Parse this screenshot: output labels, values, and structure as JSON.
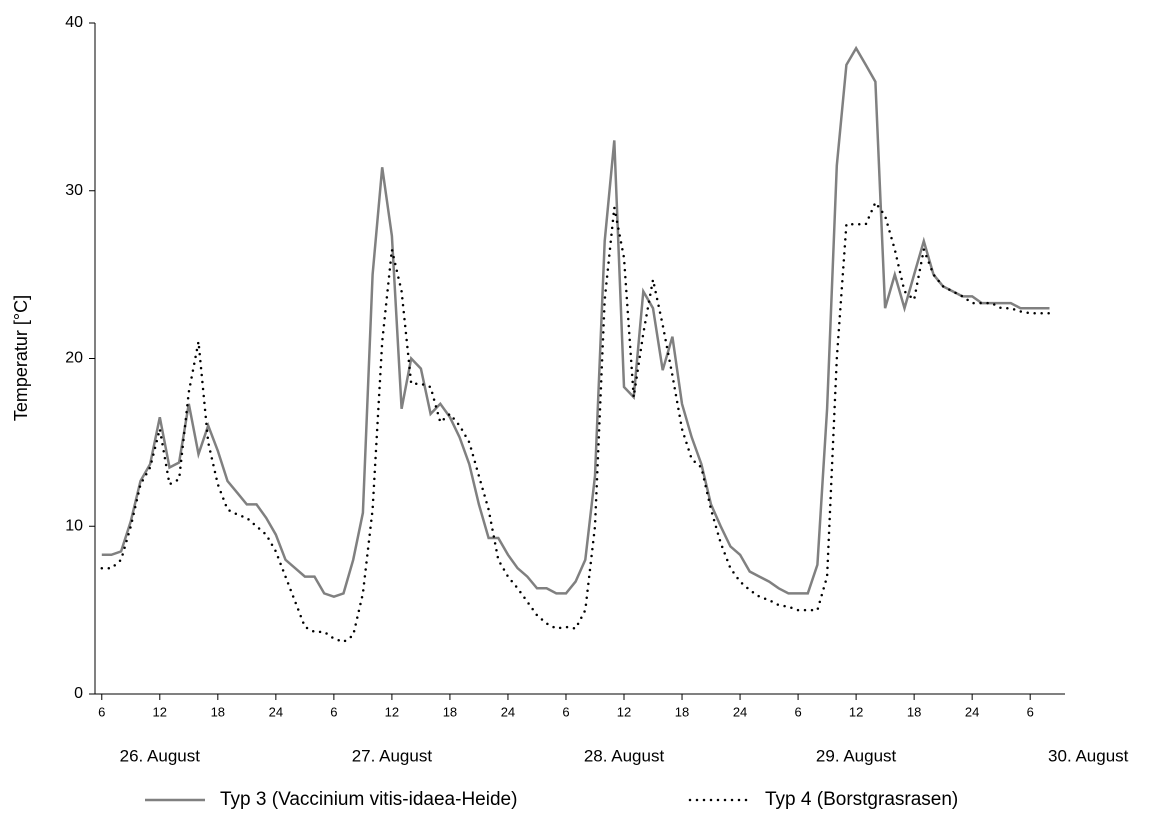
{
  "chart_data": {
    "type": "line",
    "y_label": "Temperatur [°C]",
    "x": [
      6,
      7,
      8,
      9,
      10,
      11,
      12,
      13,
      14,
      15,
      16,
      17,
      18,
      19,
      20,
      21,
      22,
      23,
      24,
      25,
      26,
      27,
      28,
      29,
      30,
      31,
      32,
      33,
      34,
      35,
      36,
      37,
      38,
      39,
      40,
      41,
      42,
      43,
      44,
      45,
      46,
      47,
      48,
      49,
      50,
      51,
      52,
      53,
      54,
      55,
      56,
      57,
      58,
      59,
      60,
      61,
      62,
      63,
      64,
      65,
      66,
      67,
      68,
      69,
      70,
      71,
      72,
      73,
      74,
      75,
      76,
      77,
      78,
      79,
      80,
      81,
      82,
      83,
      84,
      85,
      86,
      87,
      88,
      89,
      90,
      91,
      92,
      93,
      94,
      95,
      96,
      97,
      98,
      99,
      100,
      101,
      102,
      103,
      104
    ],
    "series": [
      {
        "name": "Typ 3 (Vaccinium vitis-idaea-Heide)",
        "color": "#808080",
        "style": "solid",
        "values": [
          8.3,
          8.3,
          8.5,
          10.3,
          12.7,
          13.7,
          16.5,
          13.5,
          13.8,
          17.3,
          14.3,
          16,
          14.5,
          12.7,
          12,
          11.3,
          11.3,
          10.5,
          9.5,
          8,
          7.5,
          7,
          7,
          6,
          5.8,
          6,
          8,
          10.8,
          25,
          31.4,
          27.3,
          17,
          20,
          19.4,
          16.7,
          17.3,
          16.5,
          15.3,
          13.7,
          11.3,
          9.3,
          9.3,
          8.3,
          7.5,
          7,
          6.3,
          6.3,
          6,
          6,
          6.7,
          8,
          13,
          27,
          33,
          18.3,
          17.7,
          24,
          23,
          19.3,
          21.3,
          17.3,
          15.3,
          13.7,
          11.3,
          10,
          8.8,
          8.3,
          7.3,
          7,
          6.7,
          6.3,
          6,
          6,
          6,
          7.7,
          17,
          31.5,
          37.5,
          38.5,
          37.5,
          36.5,
          23,
          25,
          23,
          25,
          27,
          25,
          24.3,
          24,
          23.7,
          23.7,
          23.3,
          23.3,
          23.3,
          23.3,
          23,
          23,
          23,
          23
        ]
      },
      {
        "name": "Typ 4 (Borstgrasrasen)",
        "color": "#000000",
        "style": "dotted",
        "values": [
          7.5,
          7.5,
          8,
          10,
          12.5,
          13.5,
          15.8,
          12.5,
          12.8,
          18,
          21,
          15,
          12.5,
          11,
          10.7,
          10.5,
          10,
          9.5,
          8.5,
          7,
          5.5,
          4,
          3.7,
          3.7,
          3.3,
          3.1,
          3.5,
          6,
          11,
          21,
          26.5,
          24,
          18.5,
          18.5,
          18.3,
          16.2,
          16.7,
          16,
          15,
          13,
          11,
          8,
          7,
          6.3,
          5.5,
          4.7,
          4.2,
          3.9,
          4,
          3.9,
          5,
          10,
          23.5,
          29,
          26,
          17.7,
          21.5,
          24.7,
          22,
          19,
          15.8,
          14,
          13.5,
          11,
          9,
          7.5,
          6.7,
          6.2,
          5.8,
          5.6,
          5.3,
          5.2,
          5,
          5,
          5,
          7,
          20,
          28,
          28,
          28,
          29.3,
          28.5,
          26.5,
          24,
          23.5,
          26.5,
          25,
          24.3,
          24,
          23.7,
          23.3,
          23.3,
          23.3,
          23,
          23,
          22.8,
          22.7,
          22.7,
          22.7
        ]
      }
    ],
    "xlim": [
      5.3,
      105.6
    ],
    "xticks": [
      6,
      12,
      18,
      24,
      {
        "value": 30,
        "label": "6"
      },
      {
        "value": 36,
        "label": "12"
      },
      {
        "value": 42,
        "label": "18"
      },
      {
        "value": 48,
        "label": "24"
      },
      {
        "value": 54,
        "label": "6"
      },
      {
        "value": 60,
        "label": "12"
      },
      {
        "value": 66,
        "label": "18"
      },
      {
        "value": 72,
        "label": "24"
      },
      {
        "value": 78,
        "label": "6"
      },
      {
        "value": 84,
        "label": "12"
      },
      {
        "value": 90,
        "label": "18"
      },
      {
        "value": 96,
        "label": "24"
      },
      {
        "value": 102,
        "label": "6"
      }
    ],
    "day_labels": [
      {
        "value": 12,
        "label": "26. August"
      },
      {
        "value": 36,
        "label": "27. August"
      },
      {
        "value": 60,
        "label": "28. August"
      },
      {
        "value": 84,
        "label": "29. August"
      },
      {
        "value": 108,
        "label": "30. August"
      }
    ],
    "ylim": [
      0,
      40
    ],
    "yticks": [
      0,
      10,
      20,
      30,
      40
    ],
    "legend": "bottom"
  }
}
